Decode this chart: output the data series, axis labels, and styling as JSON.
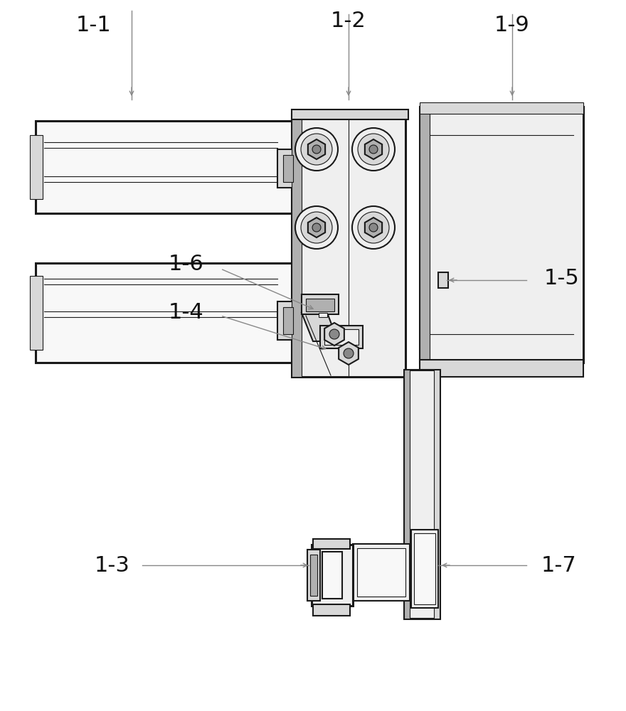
{
  "bg_color": "#ffffff",
  "lc": "#1a1a1a",
  "fill_white": "#f8f8f8",
  "fill_light": "#efefef",
  "fill_mid": "#d8d8d8",
  "fill_dark": "#b0b0b0",
  "fill_darker": "#888888",
  "ac": "#888888",
  "lw_thick": 2.2,
  "lw_main": 1.5,
  "lw_thin": 0.8,
  "lw_annot": 1.0,
  "fontsize": 22
}
